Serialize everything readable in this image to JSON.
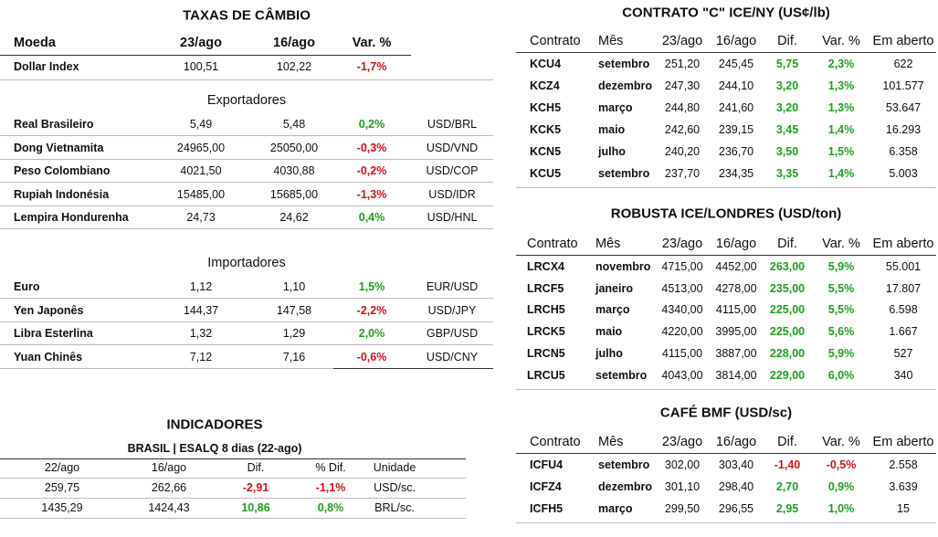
{
  "fx": {
    "title": "TAXAS DE CÂMBIO",
    "header": [
      "Moeda",
      "23/ago",
      "16/ago",
      "Var. %"
    ],
    "index_row": [
      "Dollar Index",
      "100,51",
      "102,22",
      "-1,7%"
    ],
    "exporters": {
      "title": "Exportadores",
      "rows": [
        [
          "Real Brasileiro",
          "5,49",
          "5,48",
          "0,2%",
          "USD/BRL"
        ],
        [
          "Dong Vietnamita",
          "24965,00",
          "25050,00",
          "-0,3%",
          "USD/VND"
        ],
        [
          "Peso Colombiano",
          "4021,50",
          "4030,88",
          "-0,2%",
          "USD/COP"
        ],
        [
          "Rupiah Indonésia",
          "15485,00",
          "15685,00",
          "-1,3%",
          "USD/IDR"
        ],
        [
          "Lempira Hondurenha",
          "24,73",
          "24,62",
          "0,4%",
          "USD/HNL"
        ]
      ]
    },
    "importers": {
      "title": "Importadores",
      "rows": [
        [
          "Euro",
          "1,12",
          "1,10",
          "1,5%",
          "EUR/USD"
        ],
        [
          "Yen Japonês",
          "144,37",
          "147,58",
          "-2,2%",
          "USD/JPY"
        ],
        [
          "Libra Esterlina",
          "1,32",
          "1,29",
          "2,0%",
          "GBP/USD"
        ],
        [
          "Yuan Chinês",
          "7,12",
          "7,16",
          "-0,6%",
          "USD/CNY"
        ]
      ]
    }
  },
  "indicators": {
    "title": "INDICADORES",
    "subtitle": "BRASIL | ESALQ 8 dias (22-ago)",
    "header": [
      "22/ago",
      "16/ago",
      "Dif.",
      "% Dif.",
      "Unidade"
    ],
    "rows": [
      [
        "259,75",
        "262,66",
        "-2,91",
        "-1,1%",
        "USD/sc."
      ],
      [
        "1435,29",
        "1424,43",
        "10,86",
        "0,8%",
        "BRL/sc."
      ]
    ]
  },
  "ny": {
    "title": "CONTRATO \"C\" ICE/NY (US¢/lb)",
    "header": [
      "Contrato",
      "Mês",
      "23/ago",
      "16/ago",
      "Dif.",
      "Var. %",
      "Em aberto"
    ],
    "rows": [
      [
        "KCU4",
        "setembro",
        "251,20",
        "245,45",
        "5,75",
        "2,3%",
        "622"
      ],
      [
        "KCZ4",
        "dezembro",
        "247,30",
        "244,10",
        "3,20",
        "1,3%",
        "101.577"
      ],
      [
        "KCH5",
        "março",
        "244,80",
        "241,60",
        "3,20",
        "1,3%",
        "53.647"
      ],
      [
        "KCK5",
        "maio",
        "242,60",
        "239,15",
        "3,45",
        "1,4%",
        "16.293"
      ],
      [
        "KCN5",
        "julho",
        "240,20",
        "236,70",
        "3,50",
        "1,5%",
        "6.358"
      ],
      [
        "KCU5",
        "setembro",
        "237,70",
        "234,35",
        "3,35",
        "1,4%",
        "5.003"
      ]
    ]
  },
  "london": {
    "title": "ROBUSTA ICE/LONDRES (USD/ton)",
    "header": [
      "Contrato",
      "Mês",
      "23/ago",
      "16/ago",
      "Dif.",
      "Var. %",
      "Em aberto"
    ],
    "rows": [
      [
        "LRCX4",
        "novembro",
        "4715,00",
        "4452,00",
        "263,00",
        "5,9%",
        "55.001"
      ],
      [
        "LRCF5",
        "janeiro",
        "4513,00",
        "4278,00",
        "235,00",
        "5,5%",
        "17.807"
      ],
      [
        "LRCH5",
        "março",
        "4340,00",
        "4115,00",
        "225,00",
        "5,5%",
        "6.598"
      ],
      [
        "LRCK5",
        "maio",
        "4220,00",
        "3995,00",
        "225,00",
        "5,6%",
        "1.667"
      ],
      [
        "LRCN5",
        "julho",
        "4115,00",
        "3887,00",
        "228,00",
        "5,9%",
        "527"
      ],
      [
        "LRCU5",
        "setembro",
        "4043,00",
        "3814,00",
        "229,00",
        "6,0%",
        "340"
      ]
    ]
  },
  "bmf": {
    "title": "CAFÉ BMF (USD/sc)",
    "header": [
      "Contrato",
      "Mês",
      "23/ago",
      "16/ago",
      "Dif.",
      "Var. %",
      "Em aberto"
    ],
    "rows": [
      [
        "ICFU4",
        "setembro",
        "302,00",
        "303,40",
        "-1,40",
        "-0,5%",
        "2.558"
      ],
      [
        "ICFZ4",
        "dezembro",
        "301,10",
        "298,40",
        "2,70",
        "0,9%",
        "3.639"
      ],
      [
        "ICFH5",
        "março",
        "299,50",
        "296,55",
        "2,95",
        "1,0%",
        "15"
      ]
    ]
  }
}
